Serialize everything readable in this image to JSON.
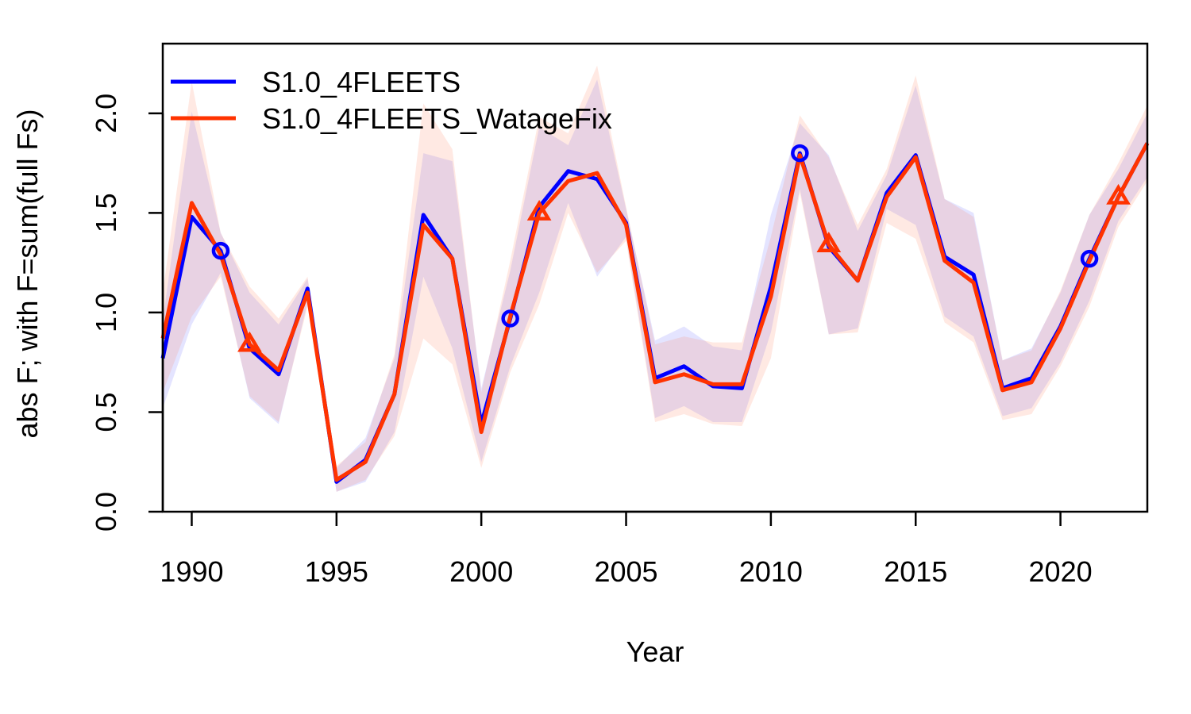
{
  "chart_data": {
    "type": "line",
    "xlabel": "Year",
    "ylabel": "abs F; with F=sum(full Fs)",
    "xlim": [
      1989,
      2023
    ],
    "ylim": [
      0,
      2.35
    ],
    "x_ticks": [
      1990,
      1995,
      2000,
      2005,
      2010,
      2015,
      2020
    ],
    "x_tick_labels": [
      "1990",
      "1995",
      "2000",
      "2005",
      "2010",
      "2015",
      "2020"
    ],
    "y_ticks": [
      0,
      0.5,
      1,
      1.5,
      2
    ],
    "y_tick_labels": [
      "0.0",
      "0.5",
      "1.0",
      "1.5",
      "2.0"
    ],
    "legend_position": "top-left",
    "x": [
      1989,
      1990,
      1991,
      1992,
      1993,
      1994,
      1995,
      1996,
      1997,
      1998,
      1999,
      2000,
      2001,
      2002,
      2003,
      2004,
      2005,
      2006,
      2007,
      2008,
      2009,
      2010,
      2011,
      2012,
      2013,
      2014,
      2015,
      2016,
      2017,
      2018,
      2019,
      2020,
      2021,
      2022,
      2023
    ],
    "series": [
      {
        "name": "S1.0_4FLEETS",
        "color": "#0000ff",
        "marker": "circle",
        "marker_x": [
          1991,
          2001,
          2011,
          2021
        ],
        "values": [
          0.77,
          1.48,
          1.31,
          0.82,
          0.69,
          1.12,
          0.15,
          0.26,
          0.59,
          1.49,
          1.27,
          0.44,
          0.97,
          1.53,
          1.71,
          1.67,
          1.45,
          0.67,
          0.73,
          0.63,
          0.62,
          1.13,
          1.8,
          1.33,
          1.16,
          1.6,
          1.79,
          1.28,
          1.19,
          0.62,
          0.67,
          0.93,
          1.27,
          1.58,
          1.85
        ],
        "lower": [
          0.52,
          0.94,
          1.2,
          0.57,
          0.44,
          1.05,
          0.1,
          0.15,
          0.4,
          1.18,
          0.82,
          0.25,
          0.73,
          1.1,
          1.55,
          1.18,
          1.38,
          0.47,
          0.53,
          0.45,
          0.45,
          0.9,
          1.62,
          0.89,
          0.92,
          1.52,
          1.44,
          0.98,
          0.88,
          0.48,
          0.52,
          0.75,
          1.06,
          1.46,
          1.68
        ],
        "upper": [
          0.96,
          2.01,
          1.4,
          1.1,
          0.94,
          1.17,
          0.22,
          0.37,
          0.77,
          1.8,
          1.76,
          0.62,
          1.21,
          1.93,
          1.84,
          2.17,
          1.52,
          0.86,
          0.93,
          0.83,
          0.81,
          1.49,
          1.95,
          1.79,
          1.41,
          1.69,
          2.14,
          1.57,
          1.5,
          0.76,
          0.82,
          1.1,
          1.49,
          1.72,
          2.0
        ]
      },
      {
        "name": "S1.0_4FLEETS_WatageFix",
        "color": "#ff3300",
        "marker": "triangle",
        "marker_x": [
          1992,
          2002,
          2012,
          2022
        ],
        "values": [
          0.87,
          1.55,
          1.29,
          0.84,
          0.71,
          1.1,
          0.16,
          0.25,
          0.59,
          1.44,
          1.27,
          0.4,
          0.98,
          1.5,
          1.66,
          1.7,
          1.44,
          0.65,
          0.69,
          0.64,
          0.64,
          1.08,
          1.79,
          1.34,
          1.16,
          1.58,
          1.78,
          1.26,
          1.15,
          0.61,
          0.65,
          0.92,
          1.26,
          1.58,
          1.85
        ],
        "lower": [
          0.6,
          0.98,
          1.18,
          0.58,
          0.45,
          1.03,
          0.1,
          0.16,
          0.38,
          0.87,
          0.74,
          0.22,
          0.7,
          1.04,
          1.5,
          1.2,
          1.36,
          0.45,
          0.49,
          0.44,
          0.43,
          0.77,
          1.6,
          0.89,
          0.9,
          1.45,
          1.37,
          0.95,
          0.85,
          0.46,
          0.49,
          0.73,
          1.03,
          1.43,
          1.66
        ],
        "upper": [
          1.1,
          2.16,
          1.4,
          1.13,
          0.97,
          1.18,
          0.23,
          0.35,
          0.79,
          2.05,
          1.82,
          0.6,
          1.26,
          1.98,
          1.9,
          2.24,
          1.53,
          0.84,
          0.88,
          0.85,
          0.85,
          1.38,
          1.99,
          1.78,
          1.44,
          1.72,
          2.19,
          1.57,
          1.48,
          0.76,
          0.81,
          1.11,
          1.49,
          1.75,
          2.04
        ]
      }
    ]
  }
}
